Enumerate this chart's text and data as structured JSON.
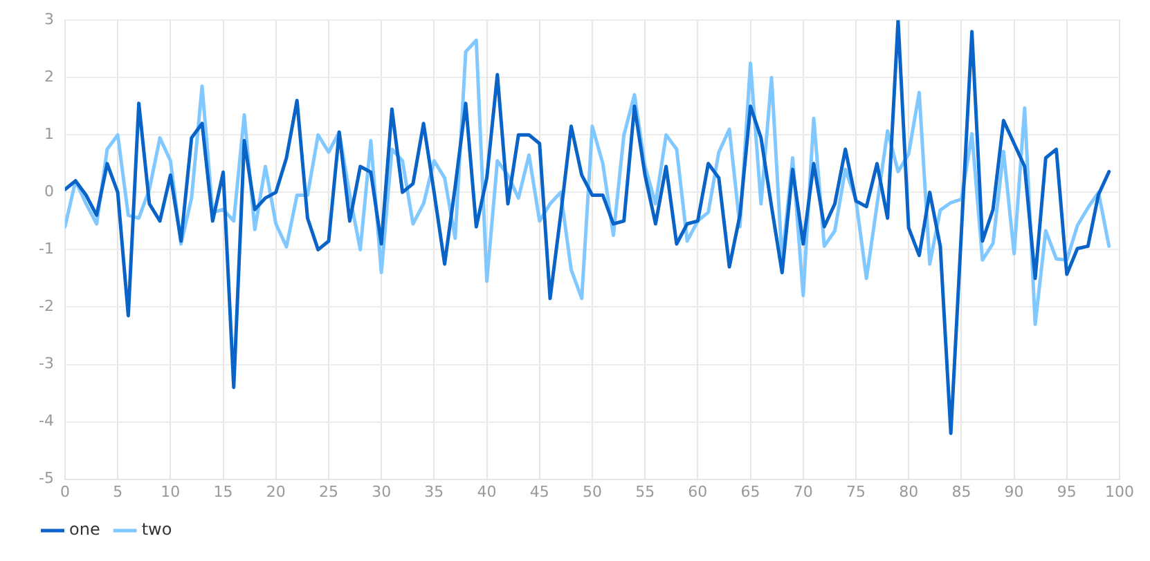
{
  "chart_data": {
    "type": "line",
    "x": [
      0,
      1,
      2,
      3,
      4,
      5,
      6,
      7,
      8,
      9,
      10,
      11,
      12,
      13,
      14,
      15,
      16,
      17,
      18,
      19,
      20,
      21,
      22,
      23,
      24,
      25,
      26,
      27,
      28,
      29,
      30,
      31,
      32,
      33,
      34,
      35,
      36,
      37,
      38,
      39,
      40,
      41,
      42,
      43,
      44,
      45,
      46,
      47,
      48,
      49,
      50,
      51,
      52,
      53,
      54,
      55,
      56,
      57,
      58,
      59,
      60,
      61,
      62,
      63,
      64,
      65,
      66,
      67,
      68,
      69,
      70,
      71,
      72,
      73,
      74,
      75,
      76,
      77,
      78,
      79,
      80,
      81,
      82,
      83,
      84,
      85,
      86,
      87,
      88,
      89,
      90,
      91,
      92,
      93,
      94,
      95,
      96,
      97,
      98,
      99
    ],
    "series": [
      {
        "name": "one",
        "color": "#0a64c8",
        "values": [
          0.05,
          0.2,
          -0.05,
          -0.4,
          0.5,
          0.0,
          -2.15,
          1.55,
          -0.2,
          -0.5,
          0.3,
          -0.85,
          0.95,
          1.2,
          -0.5,
          0.35,
          -3.4,
          0.9,
          -0.3,
          -0.1,
          0.0,
          0.6,
          1.6,
          -0.45,
          -1.0,
          -0.85,
          1.05,
          -0.5,
          0.45,
          0.35,
          -0.9,
          1.45,
          0.0,
          0.15,
          1.2,
          0.0,
          -1.25,
          0.1,
          1.55,
          -0.6,
          0.25,
          2.05,
          -0.2,
          1.0,
          1.0,
          0.85,
          -1.85,
          -0.4,
          1.15,
          0.3,
          -0.05,
          -0.05,
          -0.55,
          -0.5,
          1.5,
          0.3,
          -0.55,
          0.45,
          -0.9,
          -0.55,
          -0.5,
          0.5,
          0.25,
          -1.3,
          -0.4,
          1.5,
          0.95,
          -0.25,
          -1.4,
          0.4,
          -0.9,
          0.5,
          -0.6,
          -0.2,
          0.75,
          -0.15,
          -0.25,
          0.5,
          -0.45,
          3.0,
          -0.62,
          -1.1,
          0.0,
          -0.94,
          -4.2,
          -0.7,
          2.8,
          -0.85,
          -0.3,
          1.25,
          0.85,
          0.45,
          -1.5,
          0.6,
          0.75,
          -1.43,
          -0.98,
          -0.94,
          -0.04,
          0.36
        ]
      },
      {
        "name": "two",
        "color": "#80c8ff",
        "values": [
          -0.6,
          0.2,
          -0.2,
          -0.55,
          0.75,
          1.0,
          -0.4,
          -0.45,
          0.05,
          0.95,
          0.55,
          -0.9,
          -0.1,
          1.85,
          -0.35,
          -0.3,
          -0.5,
          1.35,
          -0.65,
          0.45,
          -0.55,
          -0.95,
          -0.05,
          -0.05,
          1.0,
          0.7,
          1.05,
          -0.05,
          -1.0,
          0.9,
          -1.4,
          0.75,
          0.55,
          -0.55,
          -0.2,
          0.55,
          0.25,
          -0.8,
          2.45,
          2.65,
          -1.55,
          0.55,
          0.3,
          -0.1,
          0.65,
          -0.5,
          -0.2,
          0.0,
          -1.35,
          -1.85,
          1.15,
          0.5,
          -0.75,
          1.0,
          1.7,
          0.45,
          -0.2,
          1.0,
          0.75,
          -0.85,
          -0.5,
          -0.35,
          0.7,
          1.1,
          -0.6,
          2.25,
          -0.2,
          2.0,
          -1.2,
          0.6,
          -1.8,
          1.29,
          -0.94,
          -0.67,
          0.4,
          -0.13,
          -1.5,
          -0.22,
          1.07,
          0.36,
          0.67,
          1.74,
          -1.25,
          -0.31,
          -0.18,
          -0.12,
          1.02,
          -1.18,
          -0.89,
          0.71,
          -1.07,
          1.47,
          -2.3,
          -0.67,
          -1.16,
          -1.18,
          -0.58,
          -0.27,
          0.0,
          -0.94
        ]
      }
    ],
    "xlim": [
      0,
      100
    ],
    "xticks": [
      0,
      5,
      10,
      15,
      20,
      25,
      30,
      35,
      40,
      45,
      50,
      55,
      60,
      65,
      70,
      75,
      80,
      85,
      90,
      95,
      100
    ],
    "ylim": [
      -5,
      3
    ],
    "yticks": [
      -5,
      -4,
      -3,
      -2,
      -1,
      0,
      1,
      2,
      3
    ],
    "grid": true,
    "legend": "bottom left",
    "marker": "none",
    "line_style": "solid"
  }
}
